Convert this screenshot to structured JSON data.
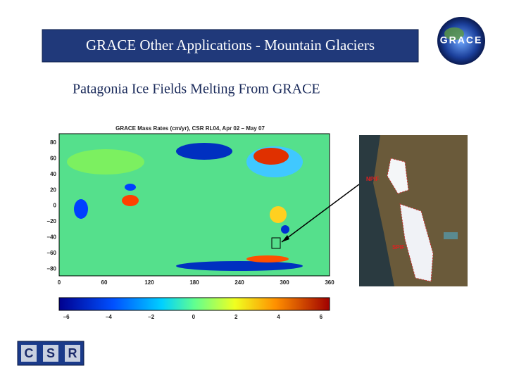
{
  "header": {
    "title": "GRACE Other Applications - Mountain Glaciers"
  },
  "subtitle": "Patagonia Ice Fields Melting From GRACE",
  "figure": {
    "title": "GRACE Mass Rates (cm/yr), CSR RL04, Apr 02 – May 07",
    "y_tick_labels": [
      "80",
      "60",
      "40",
      "20",
      "0",
      "−20",
      "−40",
      "−60",
      "−80"
    ],
    "x_tick_labels": [
      "0",
      "60",
      "120",
      "180",
      "240",
      "300",
      "360"
    ],
    "colorbar_tick_labels": [
      "−6",
      "−4",
      "−2",
      "0",
      "2",
      "4",
      "6"
    ]
  },
  "inset": {
    "labels": [
      "NPIF",
      "SPIF"
    ]
  },
  "logos": {
    "grace": "GRACE",
    "csr": [
      "C",
      "S",
      "R"
    ]
  }
}
